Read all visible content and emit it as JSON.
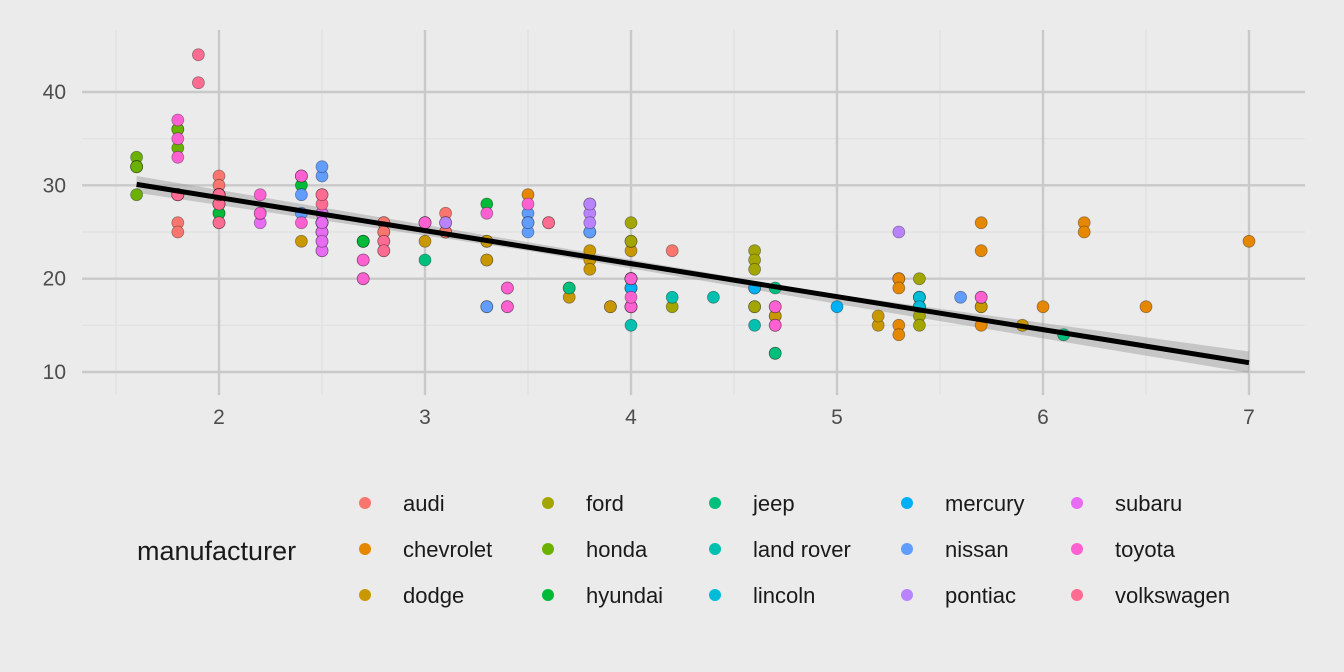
{
  "chart_data": {
    "type": "scatter",
    "title": "",
    "xlabel": "",
    "ylabel": "",
    "xlim": [
      1.33,
      7.27
    ],
    "ylim": [
      8.5,
      45.5
    ],
    "x_ticks": [
      2,
      3,
      4,
      5,
      6,
      7
    ],
    "y_ticks": [
      10,
      20,
      30,
      40
    ],
    "x_tick_labels": [
      "2",
      "3",
      "4",
      "5",
      "6",
      "7"
    ],
    "y_tick_labels": [
      "10",
      "20",
      "30",
      "40"
    ],
    "grid": true,
    "background": "#EBEBEB",
    "grid_color": "#C9C9C9",
    "legend": {
      "title": "manufacturer",
      "placement": "bottom",
      "columns": 5
    },
    "trend_line": {
      "type": "linear",
      "color": "#000000",
      "band_color": "#9A9A9A",
      "points": [
        [
          1.6,
          30.1
        ],
        [
          7.0,
          11.0
        ]
      ],
      "band": [
        [
          1.6,
          29.2,
          31.0
        ],
        [
          3.5,
          23.0,
          23.9
        ],
        [
          5.0,
          17.3,
          18.3
        ],
        [
          7.0,
          9.9,
          12.2
        ]
      ]
    },
    "series": [
      {
        "name": "audi",
        "color": "#F8766D",
        "points": [
          [
            1.8,
            29
          ],
          [
            1.8,
            29
          ],
          [
            2.0,
            31
          ],
          [
            2.0,
            30
          ],
          [
            2.8,
            26
          ],
          [
            2.8,
            26
          ],
          [
            3.1,
            27
          ],
          [
            1.8,
            26
          ],
          [
            1.8,
            25
          ],
          [
            2.0,
            28
          ],
          [
            2.0,
            28
          ],
          [
            2.8,
            25
          ],
          [
            2.8,
            25
          ],
          [
            3.1,
            25
          ],
          [
            3.1,
            25
          ],
          [
            2.8,
            24
          ],
          [
            3.1,
            25
          ],
          [
            4.2,
            23
          ]
        ]
      },
      {
        "name": "chevrolet",
        "color": "#E58700",
        "points": [
          [
            5.3,
            20
          ],
          [
            5.3,
            15
          ],
          [
            5.3,
            20
          ],
          [
            5.7,
            17
          ],
          [
            6.0,
            17
          ],
          [
            5.7,
            26
          ],
          [
            5.7,
            23
          ],
          [
            6.2,
            26
          ],
          [
            6.2,
            25
          ],
          [
            7.0,
            24
          ],
          [
            5.3,
            19
          ],
          [
            5.3,
            14
          ],
          [
            5.7,
            15
          ],
          [
            6.5,
            17
          ],
          [
            3.1,
            26
          ],
          [
            3.5,
            29
          ],
          [
            3.6,
            26
          ],
          [
            3.8,
            28
          ]
        ]
      },
      {
        "name": "dodge",
        "color": "#C99800",
        "points": [
          [
            2.4,
            24
          ],
          [
            3.0,
            24
          ],
          [
            3.3,
            22
          ],
          [
            3.3,
            22
          ],
          [
            3.3,
            24
          ],
          [
            3.3,
            24
          ],
          [
            3.3,
            17
          ],
          [
            3.8,
            22
          ],
          [
            3.8,
            21
          ],
          [
            3.8,
            23
          ],
          [
            4.0,
            23
          ],
          [
            3.7,
            19
          ],
          [
            3.7,
            18
          ],
          [
            3.9,
            17
          ],
          [
            3.9,
            17
          ],
          [
            4.7,
            16
          ],
          [
            4.7,
            16
          ],
          [
            5.2,
            15
          ],
          [
            5.2,
            16
          ],
          [
            5.7,
            17
          ],
          [
            5.9,
            15
          ],
          [
            4.7,
            12
          ]
        ]
      },
      {
        "name": "ford",
        "color": "#A3A500",
        "points": [
          [
            4.0,
            17
          ],
          [
            4.0,
            17
          ],
          [
            4.0,
            19
          ],
          [
            4.0,
            20
          ],
          [
            4.6,
            19
          ],
          [
            4.6,
            17
          ],
          [
            4.6,
            17
          ],
          [
            5.4,
            17
          ],
          [
            5.4,
            17
          ],
          [
            5.4,
            18
          ],
          [
            5.4,
            16
          ],
          [
            4.0,
            19
          ],
          [
            4.0,
            26
          ],
          [
            4.0,
            24
          ],
          [
            4.0,
            24
          ],
          [
            4.2,
            17
          ],
          [
            3.8,
            25
          ],
          [
            4.6,
            23
          ],
          [
            4.6,
            22
          ],
          [
            4.6,
            21
          ],
          [
            5.4,
            20
          ],
          [
            5.4,
            15
          ]
        ]
      },
      {
        "name": "honda",
        "color": "#6BB100",
        "points": [
          [
            1.6,
            33
          ],
          [
            1.6,
            32
          ],
          [
            1.6,
            32
          ],
          [
            1.6,
            29
          ],
          [
            1.6,
            32
          ],
          [
            1.8,
            34
          ],
          [
            1.8,
            36
          ],
          [
            1.8,
            36
          ],
          [
            2.0,
            29
          ]
        ]
      },
      {
        "name": "hyundai",
        "color": "#00BA38",
        "points": [
          [
            2.0,
            26
          ],
          [
            2.0,
            27
          ],
          [
            2.4,
            30
          ],
          [
            2.4,
            31
          ],
          [
            2.5,
            26
          ],
          [
            2.5,
            26
          ],
          [
            2.0,
            28
          ],
          [
            2.0,
            27
          ],
          [
            2.7,
            24
          ],
          [
            2.7,
            24
          ],
          [
            2.7,
            24
          ],
          [
            3.3,
            28
          ]
        ]
      },
      {
        "name": "jeep",
        "color": "#00BF7D",
        "points": [
          [
            3.0,
            22
          ],
          [
            3.7,
            19
          ],
          [
            4.0,
            20
          ],
          [
            4.7,
            17
          ],
          [
            4.7,
            12
          ],
          [
            4.7,
            19
          ],
          [
            5.7,
            18
          ],
          [
            6.1,
            14
          ]
        ]
      },
      {
        "name": "land rover",
        "color": "#00C0AF",
        "points": [
          [
            4.0,
            15
          ],
          [
            4.2,
            18
          ],
          [
            4.4,
            18
          ],
          [
            4.6,
            15
          ]
        ]
      },
      {
        "name": "lincoln",
        "color": "#00BCD8",
        "points": [
          [
            5.4,
            18
          ],
          [
            5.4,
            18
          ],
          [
            5.4,
            17
          ]
        ]
      },
      {
        "name": "mercury",
        "color": "#00B0F6",
        "points": [
          [
            4.0,
            19
          ],
          [
            4.0,
            20
          ],
          [
            4.6,
            19
          ],
          [
            5.0,
            17
          ]
        ]
      },
      {
        "name": "nissan",
        "color": "#619CFF",
        "points": [
          [
            2.4,
            27
          ],
          [
            2.4,
            29
          ],
          [
            2.5,
            31
          ],
          [
            2.5,
            32
          ],
          [
            3.5,
            27
          ],
          [
            3.5,
            26
          ],
          [
            3.0,
            26
          ],
          [
            3.5,
            25
          ],
          [
            3.3,
            17
          ],
          [
            3.8,
            25
          ],
          [
            4.0,
            17
          ],
          [
            5.6,
            18
          ],
          [
            3.5,
            26
          ]
        ]
      },
      {
        "name": "pontiac",
        "color": "#B983FF",
        "points": [
          [
            3.1,
            26
          ],
          [
            3.8,
            27
          ],
          [
            3.8,
            26
          ],
          [
            3.8,
            28
          ],
          [
            5.3,
            25
          ]
        ]
      },
      {
        "name": "subaru",
        "color": "#E76BF3",
        "points": [
          [
            2.5,
            25
          ],
          [
            2.5,
            24
          ],
          [
            2.5,
            27
          ],
          [
            2.5,
            25
          ],
          [
            2.5,
            26
          ],
          [
            2.5,
            23
          ],
          [
            2.2,
            26
          ],
          [
            2.2,
            27
          ],
          [
            2.5,
            26
          ],
          [
            2.5,
            23
          ],
          [
            2.5,
            25
          ],
          [
            2.5,
            27
          ],
          [
            2.5,
            24
          ],
          [
            2.5,
            26
          ]
        ]
      },
      {
        "name": "toyota",
        "color": "#FD61D1",
        "points": [
          [
            2.7,
            20
          ],
          [
            2.7,
            20
          ],
          [
            3.4,
            19
          ],
          [
            3.4,
            17
          ],
          [
            4.0,
            20
          ],
          [
            4.0,
            17
          ],
          [
            2.7,
            22
          ],
          [
            2.7,
            22
          ],
          [
            3.4,
            19
          ],
          [
            3.4,
            17
          ],
          [
            4.0,
            20
          ],
          [
            4.7,
            17
          ],
          [
            4.7,
            15
          ],
          [
            4.7,
            15
          ],
          [
            5.7,
            18
          ],
          [
            2.2,
            29
          ],
          [
            2.2,
            27
          ],
          [
            2.4,
            31
          ],
          [
            2.4,
            31
          ],
          [
            3.0,
            26
          ],
          [
            3.0,
            26
          ],
          [
            3.5,
            28
          ],
          [
            1.8,
            35
          ],
          [
            1.8,
            37
          ],
          [
            1.8,
            33
          ],
          [
            4.0,
            18
          ],
          [
            2.4,
            26
          ],
          [
            3.3,
            27
          ]
        ]
      },
      {
        "name": "volkswagen",
        "color": "#FF6C91",
        "points": [
          [
            2.0,
            28
          ],
          [
            2.0,
            29
          ],
          [
            2.0,
            29
          ],
          [
            2.0,
            29
          ],
          [
            2.8,
            23
          ],
          [
            1.9,
            44
          ],
          [
            2.0,
            29
          ],
          [
            2.0,
            26
          ],
          [
            2.0,
            29
          ],
          [
            2.5,
            29
          ],
          [
            1.8,
            29
          ],
          [
            1.8,
            29
          ],
          [
            2.8,
            24
          ],
          [
            2.8,
            23
          ],
          [
            3.6,
            26
          ],
          [
            1.9,
            41
          ],
          [
            2.5,
            28
          ],
          [
            2.5,
            29
          ]
        ]
      }
    ]
  }
}
